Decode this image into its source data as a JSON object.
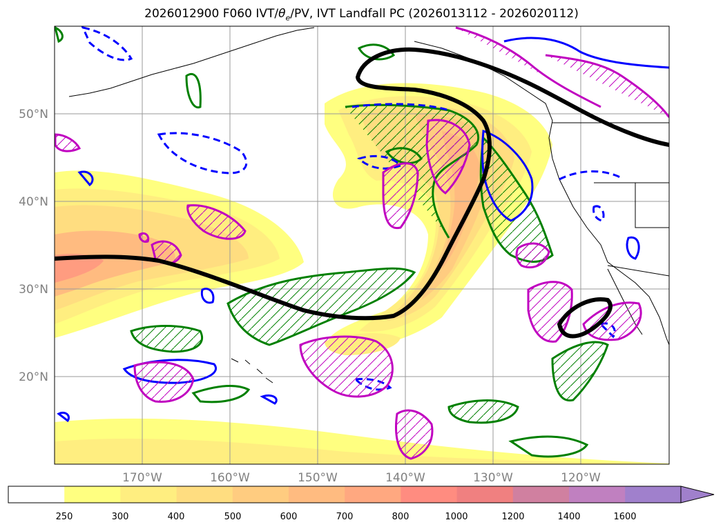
{
  "title": {
    "prefix": "2026012900 F060 IVT/",
    "theta": "θ",
    "theta_sub": "e",
    "suffix": "/PV, IVT Landfall PC (2026013112 - 2026020112)"
  },
  "map": {
    "lon_range": [
      -180,
      -110
    ],
    "lat_range": [
      10,
      60
    ],
    "lat_ticks": [
      {
        "value": 50,
        "label": "50°N"
      },
      {
        "value": 40,
        "label": "40°N"
      },
      {
        "value": 30,
        "label": "30°N"
      },
      {
        "value": 20,
        "label": "20°N"
      }
    ],
    "lon_ticks": [
      {
        "value": -170,
        "label": "170°W"
      },
      {
        "value": -160,
        "label": "160°W"
      },
      {
        "value": -150,
        "label": "150°W"
      },
      {
        "value": -140,
        "label": "140°W"
      },
      {
        "value": -130,
        "label": "130°W"
      },
      {
        "value": -120,
        "label": "120°W"
      }
    ],
    "grid": true,
    "colors": {
      "pv_contour": "#000000",
      "theta_e_contour": "#008000",
      "blue_contour": "#0000ff",
      "magenta_contour": "#c000c0",
      "coastline": "#000000"
    }
  },
  "colorbar": {
    "levels": [
      "250",
      "300",
      "400",
      "500",
      "600",
      "700",
      "800",
      "1000",
      "1200",
      "1400",
      "1600"
    ],
    "colors": [
      "#ffffff",
      "#ffff80",
      "#ffee80",
      "#ffdd80",
      "#ffcc80",
      "#ffbb80",
      "#ffa880",
      "#ff8c80",
      "#f08080",
      "#d080a0",
      "#c080c0",
      "#a080cc"
    ],
    "extend": "max"
  }
}
